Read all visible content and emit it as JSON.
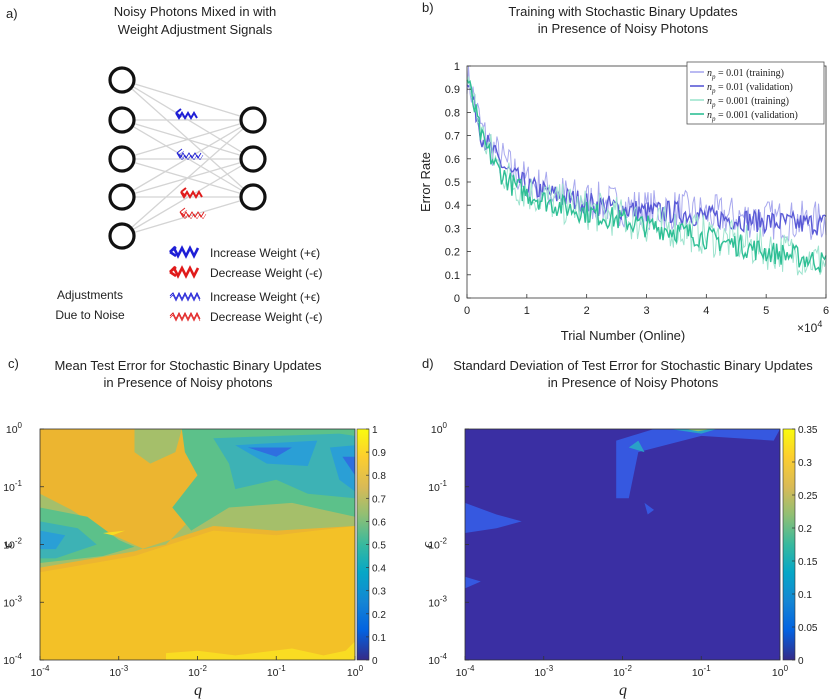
{
  "panel_a": {
    "label": "a)",
    "title_line1": "Noisy Photons Mixed in with",
    "title_line2": "Weight Adjustment Signals",
    "legend": [
      {
        "text": "Increase Weight (+ϵ)",
        "color": "#1f1fd6",
        "style": "solid"
      },
      {
        "text": "Decrease Weight (-ϵ)",
        "color": "#e01b1b",
        "style": "solid"
      },
      {
        "text": "Increase Weight (+ϵ)",
        "color": "#1f1fd6",
        "style": "noisy"
      },
      {
        "text": "Decrease Weight (-ϵ)",
        "color": "#e01b1b",
        "style": "noisy"
      }
    ],
    "side_label_line1": "Adjustments",
    "side_label_line2": "Due to Noise"
  },
  "chart_data": [
    {
      "panel": "b)",
      "type": "line",
      "title_line1": "Training with Stochastic Binary Updates",
      "title_line2": "in Presence of Noisy Photons",
      "xlabel": "Trial Number (Online)",
      "ylabel": "Error Rate",
      "x_exponent": "×10",
      "x_exponent_power": "4",
      "xlim": [
        0,
        6
      ],
      "ylim": [
        0,
        1
      ],
      "xticks": [
        "0",
        "1",
        "2",
        "3",
        "4",
        "5",
        "6"
      ],
      "yticks": [
        "0",
        "0.1",
        "0.2",
        "0.3",
        "0.4",
        "0.5",
        "0.6",
        "0.7",
        "0.8",
        "0.9",
        "1"
      ],
      "legend_position": "top-right",
      "x": [
        0,
        0.25,
        0.5,
        0.75,
        1.0,
        1.5,
        2.0,
        2.5,
        3.0,
        3.5,
        4.0,
        4.5,
        5.0,
        5.5,
        6.0
      ],
      "series": [
        {
          "name": "n_p = 0.01 (training)",
          "color": "#a9a9ee",
          "width": 1,
          "values": [
            0.97,
            0.72,
            0.62,
            0.55,
            0.5,
            0.45,
            0.42,
            0.4,
            0.38,
            0.38,
            0.36,
            0.35,
            0.34,
            0.33,
            0.33
          ]
        },
        {
          "name": "n_p = 0.01 (validation)",
          "color": "#5a5ad6",
          "width": 1.4,
          "values": [
            0.96,
            0.7,
            0.6,
            0.53,
            0.48,
            0.44,
            0.41,
            0.39,
            0.37,
            0.37,
            0.35,
            0.34,
            0.33,
            0.32,
            0.32
          ]
        },
        {
          "name": "n_p = 0.001 (training)",
          "color": "#9fe4cf",
          "width": 1,
          "values": [
            0.97,
            0.7,
            0.58,
            0.5,
            0.46,
            0.41,
            0.38,
            0.35,
            0.32,
            0.3,
            0.27,
            0.24,
            0.21,
            0.19,
            0.15
          ]
        },
        {
          "name": "n_p = 0.001 (validation)",
          "color": "#2fbf95",
          "width": 1.4,
          "values": [
            0.95,
            0.68,
            0.56,
            0.49,
            0.45,
            0.4,
            0.37,
            0.34,
            0.31,
            0.29,
            0.26,
            0.23,
            0.2,
            0.18,
            0.15
          ]
        }
      ]
    },
    {
      "panel": "c)",
      "type": "heatmap",
      "title_line1": "Mean Test Error for Stochastic Binary Updates",
      "title_line2": "in Presence of Noisy photons",
      "xlabel": "q",
      "ylabel": "ϵ",
      "x_scale": "log",
      "y_scale": "log",
      "xlim": [
        0.0001,
        1
      ],
      "ylim": [
        0.0001,
        1
      ],
      "xticks": [
        {
          "base": "10",
          "exp": "-4"
        },
        {
          "base": "10",
          "exp": "-3"
        },
        {
          "base": "10",
          "exp": "-2"
        },
        {
          "base": "10",
          "exp": "-1"
        },
        {
          "base": "10",
          "exp": "0"
        }
      ],
      "yticks": [
        {
          "base": "10",
          "exp": "-4"
        },
        {
          "base": "10",
          "exp": "-3"
        },
        {
          "base": "10",
          "exp": "-2"
        },
        {
          "base": "10",
          "exp": "-1"
        },
        {
          "base": "10",
          "exp": "0"
        }
      ],
      "colorbar_ticks": [
        "0",
        "0.1",
        "0.2",
        "0.3",
        "0.4",
        "0.5",
        "0.6",
        "0.7",
        "0.8",
        "0.9",
        "1"
      ],
      "colorbar_range": [
        0,
        1
      ],
      "colormap": "parula"
    },
    {
      "panel": "d)",
      "type": "heatmap",
      "title_line1": "Standard Deviation of Test Error for Stochastic Binary Updates",
      "title_line2": "in Presence of Noisy Photons",
      "xlabel": "q",
      "ylabel": "ϵ",
      "x_scale": "log",
      "y_scale": "log",
      "xlim": [
        0.0001,
        1
      ],
      "ylim": [
        0.0001,
        1
      ],
      "xticks": [
        {
          "base": "10",
          "exp": "-4"
        },
        {
          "base": "10",
          "exp": "-3"
        },
        {
          "base": "10",
          "exp": "-2"
        },
        {
          "base": "10",
          "exp": "-1"
        },
        {
          "base": "10",
          "exp": "0"
        }
      ],
      "yticks": [
        {
          "base": "10",
          "exp": "-4"
        },
        {
          "base": "10",
          "exp": "-3"
        },
        {
          "base": "10",
          "exp": "-2"
        },
        {
          "base": "10",
          "exp": "-1"
        },
        {
          "base": "10",
          "exp": "0"
        }
      ],
      "colorbar_ticks": [
        "0",
        "0.05",
        "0.1",
        "0.15",
        "0.2",
        "0.25",
        "0.3",
        "0.35"
      ],
      "colorbar_range": [
        0,
        0.35
      ],
      "colormap": "parula"
    }
  ],
  "colors": {
    "parula_low": "#352a87",
    "parula_mid": "#21b1a9",
    "parula_high": "#f9fb0e",
    "orange": "#ecb530",
    "neuron": "#111111",
    "edge": "#d0d0d0"
  }
}
